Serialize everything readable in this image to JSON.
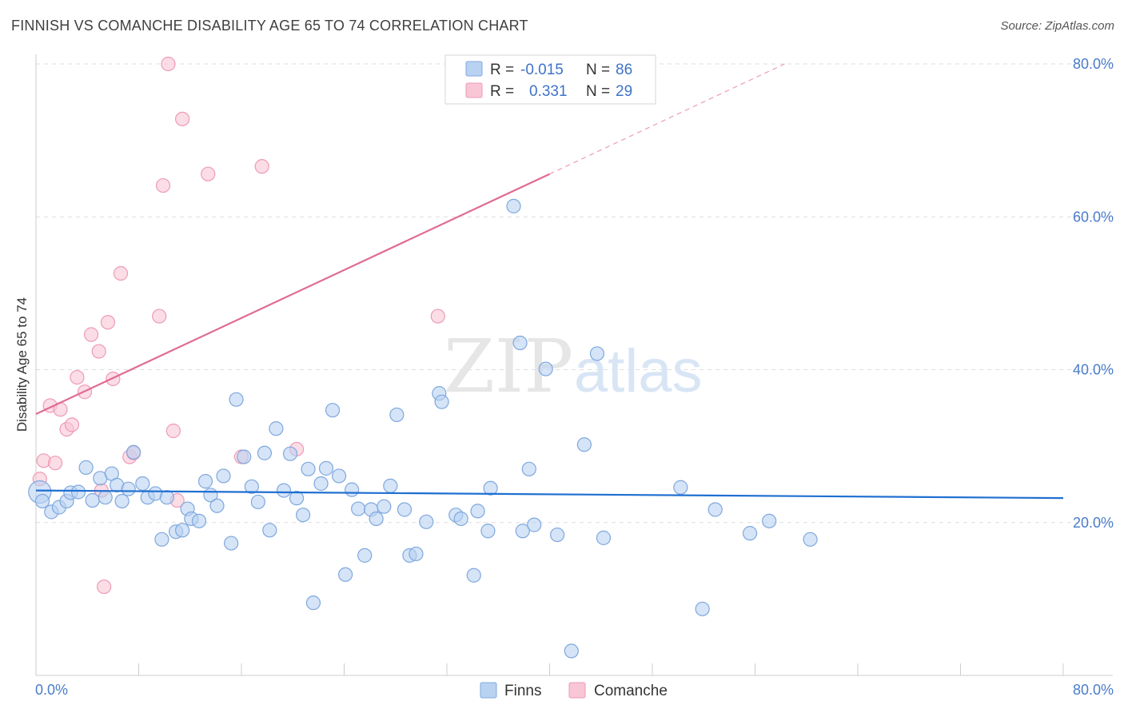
{
  "title": "FINNISH VS COMANCHE DISABILITY AGE 65 TO 74 CORRELATION CHART",
  "source": "Source: ZipAtlas.com",
  "watermark": {
    "zip": "ZIP",
    "atlas": "atlas"
  },
  "colors": {
    "finns_fill": "#b9d2f2",
    "finns_stroke": "#7fa8de",
    "finns_line": "#1f6fd1",
    "comanche_fill": "#f9c6d6",
    "comanche_stroke": "#ee9ab6",
    "comanche_line": "#e06b93",
    "tick_label": "#4a7cc9",
    "grid": "#dddddd"
  },
  "legend": {
    "rows": [
      {
        "r_label": "R =",
        "r_value": "-0.015",
        "n_label": "N =",
        "n_value": "86"
      },
      {
        "r_label": "R =",
        "r_value": " 0.331",
        "n_label": "N =",
        "n_value": "29"
      }
    ]
  },
  "chart_data": {
    "type": "scatter",
    "xlabel": "",
    "ylabel": "Disability Age 65 to 74",
    "xlim": [
      0,
      80
    ],
    "ylim": [
      0,
      80
    ],
    "x_tick_labels": [
      "0.0%",
      "80.0%"
    ],
    "y_ticks": [
      {
        "value": 20,
        "label": "20.0%"
      },
      {
        "value": 40,
        "label": "40.0%"
      },
      {
        "value": 60,
        "label": "60.0%"
      },
      {
        "value": 80,
        "label": "80.0%"
      }
    ],
    "grid": "horizontal dashed",
    "legend_position": "bottom-center",
    "series": [
      {
        "name": "Finns",
        "r": -0.015,
        "n": 86,
        "trend": {
          "x": [
            0,
            80
          ],
          "y": [
            24.2,
            23.2
          ]
        },
        "points": [
          [
            0.3,
            24.0
          ],
          [
            0.5,
            22.8
          ],
          [
            1.2,
            21.4
          ],
          [
            1.8,
            22.0
          ],
          [
            2.4,
            22.8
          ],
          [
            2.7,
            23.9
          ],
          [
            3.3,
            24.0
          ],
          [
            3.9,
            27.2
          ],
          [
            4.4,
            22.9
          ],
          [
            5.0,
            25.8
          ],
          [
            5.4,
            23.3
          ],
          [
            5.9,
            26.4
          ],
          [
            6.3,
            24.9
          ],
          [
            6.7,
            22.8
          ],
          [
            7.2,
            24.4
          ],
          [
            7.6,
            29.2
          ],
          [
            8.3,
            25.1
          ],
          [
            8.7,
            23.3
          ],
          [
            9.3,
            23.8
          ],
          [
            9.8,
            17.8
          ],
          [
            10.2,
            23.3
          ],
          [
            10.9,
            18.8
          ],
          [
            11.4,
            19.0
          ],
          [
            11.8,
            21.8
          ],
          [
            12.1,
            20.5
          ],
          [
            12.7,
            20.2
          ],
          [
            13.2,
            25.4
          ],
          [
            13.6,
            23.6
          ],
          [
            14.1,
            22.2
          ],
          [
            14.6,
            26.1
          ],
          [
            15.2,
            17.3
          ],
          [
            15.6,
            36.1
          ],
          [
            16.2,
            28.6
          ],
          [
            16.8,
            24.7
          ],
          [
            17.3,
            22.7
          ],
          [
            17.8,
            29.1
          ],
          [
            18.2,
            19.0
          ],
          [
            18.7,
            32.3
          ],
          [
            19.3,
            24.2
          ],
          [
            19.8,
            29.0
          ],
          [
            20.3,
            23.2
          ],
          [
            20.8,
            21.0
          ],
          [
            21.2,
            27.0
          ],
          [
            21.6,
            9.5
          ],
          [
            22.2,
            25.1
          ],
          [
            22.6,
            27.1
          ],
          [
            23.1,
            34.7
          ],
          [
            23.6,
            26.1
          ],
          [
            24.1,
            13.2
          ],
          [
            24.6,
            24.3
          ],
          [
            25.1,
            21.8
          ],
          [
            25.6,
            15.7
          ],
          [
            26.1,
            21.7
          ],
          [
            26.5,
            20.5
          ],
          [
            27.1,
            22.1
          ],
          [
            27.6,
            24.8
          ],
          [
            28.1,
            34.1
          ],
          [
            28.7,
            21.7
          ],
          [
            29.1,
            15.7
          ],
          [
            29.6,
            15.9
          ],
          [
            30.4,
            20.1
          ],
          [
            31.4,
            36.9
          ],
          [
            31.6,
            35.8
          ],
          [
            32.7,
            21.0
          ],
          [
            33.1,
            20.5
          ],
          [
            34.1,
            13.1
          ],
          [
            34.4,
            21.5
          ],
          [
            35.2,
            18.9
          ],
          [
            35.4,
            24.5
          ],
          [
            37.2,
            61.4
          ],
          [
            37.7,
            43.5
          ],
          [
            37.9,
            18.9
          ],
          [
            38.4,
            27.0
          ],
          [
            38.8,
            19.7
          ],
          [
            39.7,
            40.1
          ],
          [
            40.6,
            18.4
          ],
          [
            41.7,
            3.2
          ],
          [
            42.7,
            30.2
          ],
          [
            43.7,
            42.1
          ],
          [
            44.2,
            18.0
          ],
          [
            50.2,
            24.6
          ],
          [
            51.9,
            8.7
          ],
          [
            52.9,
            21.7
          ],
          [
            55.6,
            18.6
          ],
          [
            57.1,
            20.2
          ],
          [
            60.3,
            17.8
          ]
        ]
      },
      {
        "name": "Comanche",
        "r": 0.331,
        "n": 29,
        "trend": {
          "x": [
            0,
            40
          ],
          "y": [
            34.2,
            65.6
          ]
        },
        "trend_extension": {
          "x": [
            40,
            58.3
          ],
          "y": [
            65.6,
            80.0
          ]
        },
        "points": [
          [
            0.3,
            25.7
          ],
          [
            0.6,
            28.1
          ],
          [
            1.1,
            35.3
          ],
          [
            1.5,
            27.8
          ],
          [
            1.9,
            34.8
          ],
          [
            2.4,
            32.2
          ],
          [
            2.8,
            32.8
          ],
          [
            3.2,
            39.0
          ],
          [
            3.8,
            37.1
          ],
          [
            4.3,
            44.6
          ],
          [
            4.9,
            42.4
          ],
          [
            5.6,
            46.2
          ],
          [
            5.1,
            24.2
          ],
          [
            5.3,
            11.6
          ],
          [
            6.0,
            38.8
          ],
          [
            6.6,
            52.6
          ],
          [
            7.3,
            28.6
          ],
          [
            7.6,
            29.1
          ],
          [
            9.6,
            47.0
          ],
          [
            9.9,
            64.1
          ],
          [
            10.3,
            80.0
          ],
          [
            10.7,
            32.0
          ],
          [
            11.0,
            22.9
          ],
          [
            11.4,
            72.8
          ],
          [
            13.4,
            65.6
          ],
          [
            16.0,
            28.6
          ],
          [
            17.6,
            66.6
          ],
          [
            20.3,
            29.6
          ],
          [
            31.3,
            47.0
          ]
        ]
      }
    ]
  }
}
